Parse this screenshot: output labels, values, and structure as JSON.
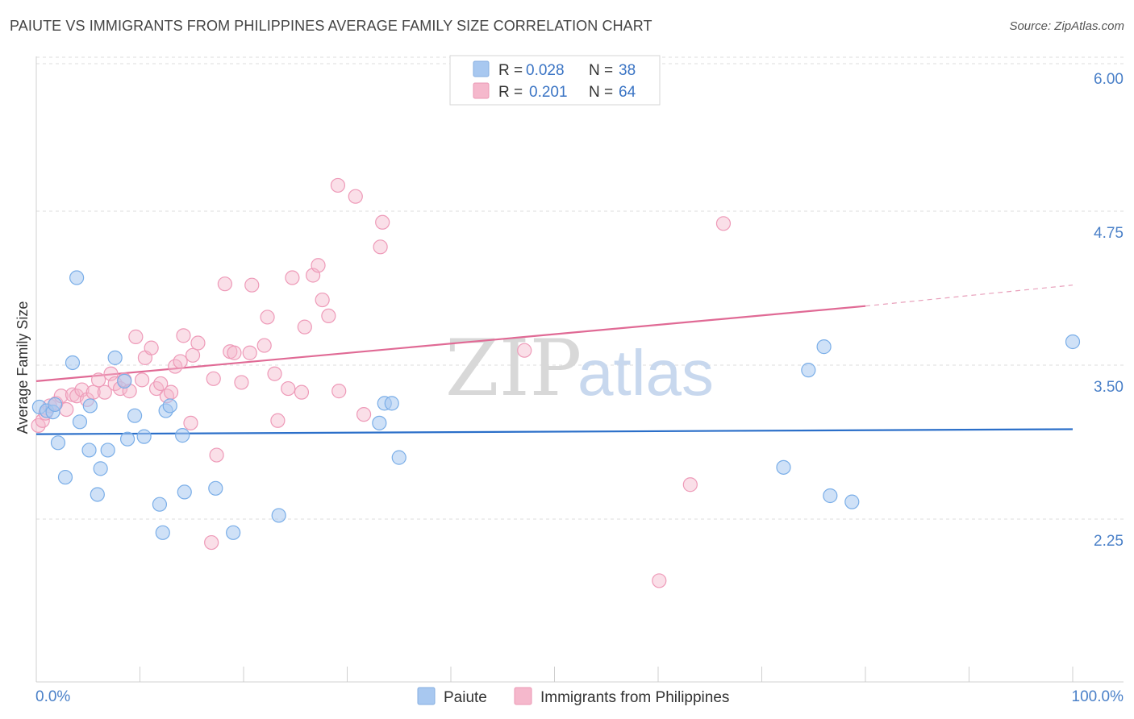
{
  "header": {
    "title": "PAIUTE VS IMMIGRANTS FROM PHILIPPINES AVERAGE FAMILY SIZE CORRELATION CHART",
    "source": "Source: ZipAtlas.com"
  },
  "watermark": {
    "zip": "ZIP",
    "atlas": "atlas"
  },
  "legend": {
    "rows": [
      {
        "r_label": "R = ",
        "r_value": "0.028",
        "n_label": "N = ",
        "n_value": "38",
        "color": "#a8c8f0"
      },
      {
        "r_label": "R = ",
        "r_value": "0.201",
        "n_label": "N = ",
        "n_value": "64",
        "color": "#f5b8cc"
      }
    ]
  },
  "chart_data": {
    "type": "scatter",
    "title": "PAIUTE VS IMMIGRANTS FROM PHILIPPINES AVERAGE FAMILY SIZE CORRELATION CHART",
    "xlabel": "",
    "ylabel": "Average Family Size",
    "xlim": [
      0,
      100
    ],
    "ylim": [
      1.0,
      6.15
    ],
    "x_tick_labels": [
      "0.0%",
      "100.0%"
    ],
    "y_ticks": [
      2.25,
      3.5,
      4.75,
      6.0
    ],
    "y_tick_labels": [
      "2.25",
      "3.50",
      "4.75",
      "6.00"
    ],
    "grid": true,
    "legend_position": "top-center",
    "series": [
      {
        "name": "Paiute",
        "color": "#7aaee8",
        "trend": {
          "x0": 0,
          "y0": 3.11,
          "x1": 100,
          "y1": 3.15
        },
        "points": [
          [
            0.3,
            3.33
          ],
          [
            1.0,
            3.3
          ],
          [
            1.6,
            3.29
          ],
          [
            1.8,
            3.35
          ],
          [
            2.1,
            3.04
          ],
          [
            2.8,
            2.76
          ],
          [
            3.5,
            3.69
          ],
          [
            3.9,
            4.38
          ],
          [
            4.2,
            3.21
          ],
          [
            5.1,
            2.98
          ],
          [
            5.2,
            3.34
          ],
          [
            5.9,
            2.62
          ],
          [
            6.2,
            2.83
          ],
          [
            6.9,
            2.98
          ],
          [
            7.6,
            3.73
          ],
          [
            8.5,
            3.54
          ],
          [
            8.8,
            3.07
          ],
          [
            9.5,
            3.26
          ],
          [
            10.4,
            3.09
          ],
          [
            11.9,
            2.54
          ],
          [
            12.2,
            2.31
          ],
          [
            12.5,
            3.3
          ],
          [
            12.9,
            3.34
          ],
          [
            14.1,
            3.1
          ],
          [
            14.3,
            2.64
          ],
          [
            17.3,
            2.67
          ],
          [
            19.0,
            2.31
          ],
          [
            23.4,
            2.45
          ],
          [
            33.1,
            3.2
          ],
          [
            33.6,
            3.36
          ],
          [
            34.3,
            3.36
          ],
          [
            35.0,
            2.92
          ],
          [
            72.1,
            2.84
          ],
          [
            74.5,
            3.63
          ],
          [
            76.0,
            3.82
          ],
          [
            76.6,
            2.61
          ],
          [
            78.7,
            2.56
          ],
          [
            100.0,
            3.86
          ]
        ]
      },
      {
        "name": "Immigrants from Philippines",
        "color": "#f2a0bc",
        "trend": {
          "x0": 0,
          "y0": 3.54,
          "x1": 80,
          "y1": 4.15,
          "dash_to_x": 100,
          "dash_to_y": 4.32
        },
        "points": [
          [
            0.2,
            3.18
          ],
          [
            0.6,
            3.22
          ],
          [
            0.9,
            3.28
          ],
          [
            1.3,
            3.34
          ],
          [
            1.9,
            3.36
          ],
          [
            2.4,
            3.42
          ],
          [
            2.9,
            3.31
          ],
          [
            3.5,
            3.43
          ],
          [
            3.9,
            3.42
          ],
          [
            4.4,
            3.47
          ],
          [
            4.9,
            3.39
          ],
          [
            5.5,
            3.45
          ],
          [
            6.0,
            3.55
          ],
          [
            6.6,
            3.45
          ],
          [
            7.2,
            3.6
          ],
          [
            7.6,
            3.52
          ],
          [
            8.1,
            3.48
          ],
          [
            8.5,
            3.55
          ],
          [
            9.0,
            3.46
          ],
          [
            9.6,
            3.9
          ],
          [
            10.2,
            3.55
          ],
          [
            10.5,
            3.73
          ],
          [
            11.1,
            3.81
          ],
          [
            11.6,
            3.48
          ],
          [
            12.0,
            3.52
          ],
          [
            12.6,
            3.42
          ],
          [
            13.0,
            3.45
          ],
          [
            13.4,
            3.66
          ],
          [
            13.9,
            3.7
          ],
          [
            14.2,
            3.91
          ],
          [
            14.9,
            3.2
          ],
          [
            15.1,
            3.75
          ],
          [
            15.6,
            3.85
          ],
          [
            16.9,
            2.23
          ],
          [
            17.1,
            3.56
          ],
          [
            17.4,
            2.94
          ],
          [
            18.2,
            4.33
          ],
          [
            18.7,
            3.78
          ],
          [
            19.1,
            3.77
          ],
          [
            19.8,
            3.53
          ],
          [
            20.6,
            3.77
          ],
          [
            20.8,
            4.32
          ],
          [
            22.0,
            3.83
          ],
          [
            22.3,
            4.06
          ],
          [
            23.0,
            3.6
          ],
          [
            23.3,
            3.22
          ],
          [
            24.3,
            3.48
          ],
          [
            24.7,
            4.38
          ],
          [
            25.6,
            3.45
          ],
          [
            25.9,
            3.98
          ],
          [
            26.7,
            4.4
          ],
          [
            27.2,
            4.48
          ],
          [
            27.6,
            4.2
          ],
          [
            28.2,
            4.07
          ],
          [
            29.1,
            5.13
          ],
          [
            29.2,
            3.46
          ],
          [
            30.8,
            5.04
          ],
          [
            31.6,
            3.27
          ],
          [
            33.2,
            4.63
          ],
          [
            33.4,
            4.83
          ],
          [
            47.1,
            3.79
          ],
          [
            60.1,
            1.92
          ],
          [
            63.1,
            2.7
          ],
          [
            66.3,
            4.82
          ]
        ]
      }
    ]
  },
  "bottom_legend": {
    "items": [
      {
        "label": "Paiute",
        "color": "#a8c8f0"
      },
      {
        "label": "Immigrants from Philippines",
        "color": "#f5b8cc"
      }
    ]
  }
}
